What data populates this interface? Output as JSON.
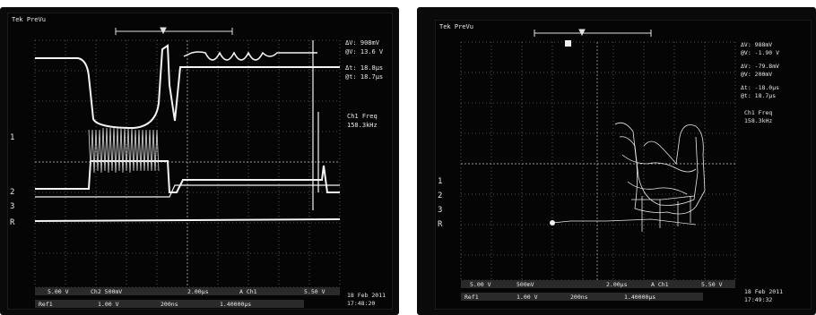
{
  "left_screen": {
    "brand": "Tek",
    "mode": "PreVu",
    "readout": {
      "delta_v": "908mV",
      "at_v": "13.6 V",
      "delta_t": "18.8µs",
      "at_t": "18.7µs",
      "freq_title": "Ch1 Freq",
      "freq_value": "158.3kHz"
    },
    "bottom": {
      "ch1_scale": "5.00 V",
      "ch2_scale": "Ch2 500mV",
      "timebase": "2.00µs",
      "trigger": "A Ch1",
      "trigger_level": "5.50 V",
      "ref_label": "Ref1",
      "ref_scale": "1.00 V",
      "ref_time": "200ns",
      "record": "1.40000µs",
      "date": "18 Feb 2011",
      "time": "17:48:20"
    },
    "channel_markers": [
      "1",
      "2",
      "3",
      "R"
    ]
  },
  "right_screen": {
    "brand": "Tek",
    "mode": "PreVu",
    "readout": {
      "delta_v": "988mV",
      "at_v": "-1.90 V",
      "delta_v2": "-79.8mV",
      "at_v2": "200mV",
      "delta_t": "-18.0µs",
      "at_t": "18.7µs",
      "freq_title": "Ch1 Freq",
      "freq_value": "158.3kHz"
    },
    "bottom": {
      "ch1_scale": "5.00 V",
      "ch2_scale": "500mV",
      "timebase": "2.00µs",
      "trigger": "A Ch1",
      "trigger_level": "5.50 V",
      "ref_label": "Ref1",
      "ref_scale": "1.00 V",
      "ref_time": "200ns",
      "record": "1.40000µs",
      "date": "18 Feb 2011",
      "time": "17:49:32"
    },
    "channel_markers": [
      "1",
      "2",
      "3",
      "R"
    ]
  }
}
